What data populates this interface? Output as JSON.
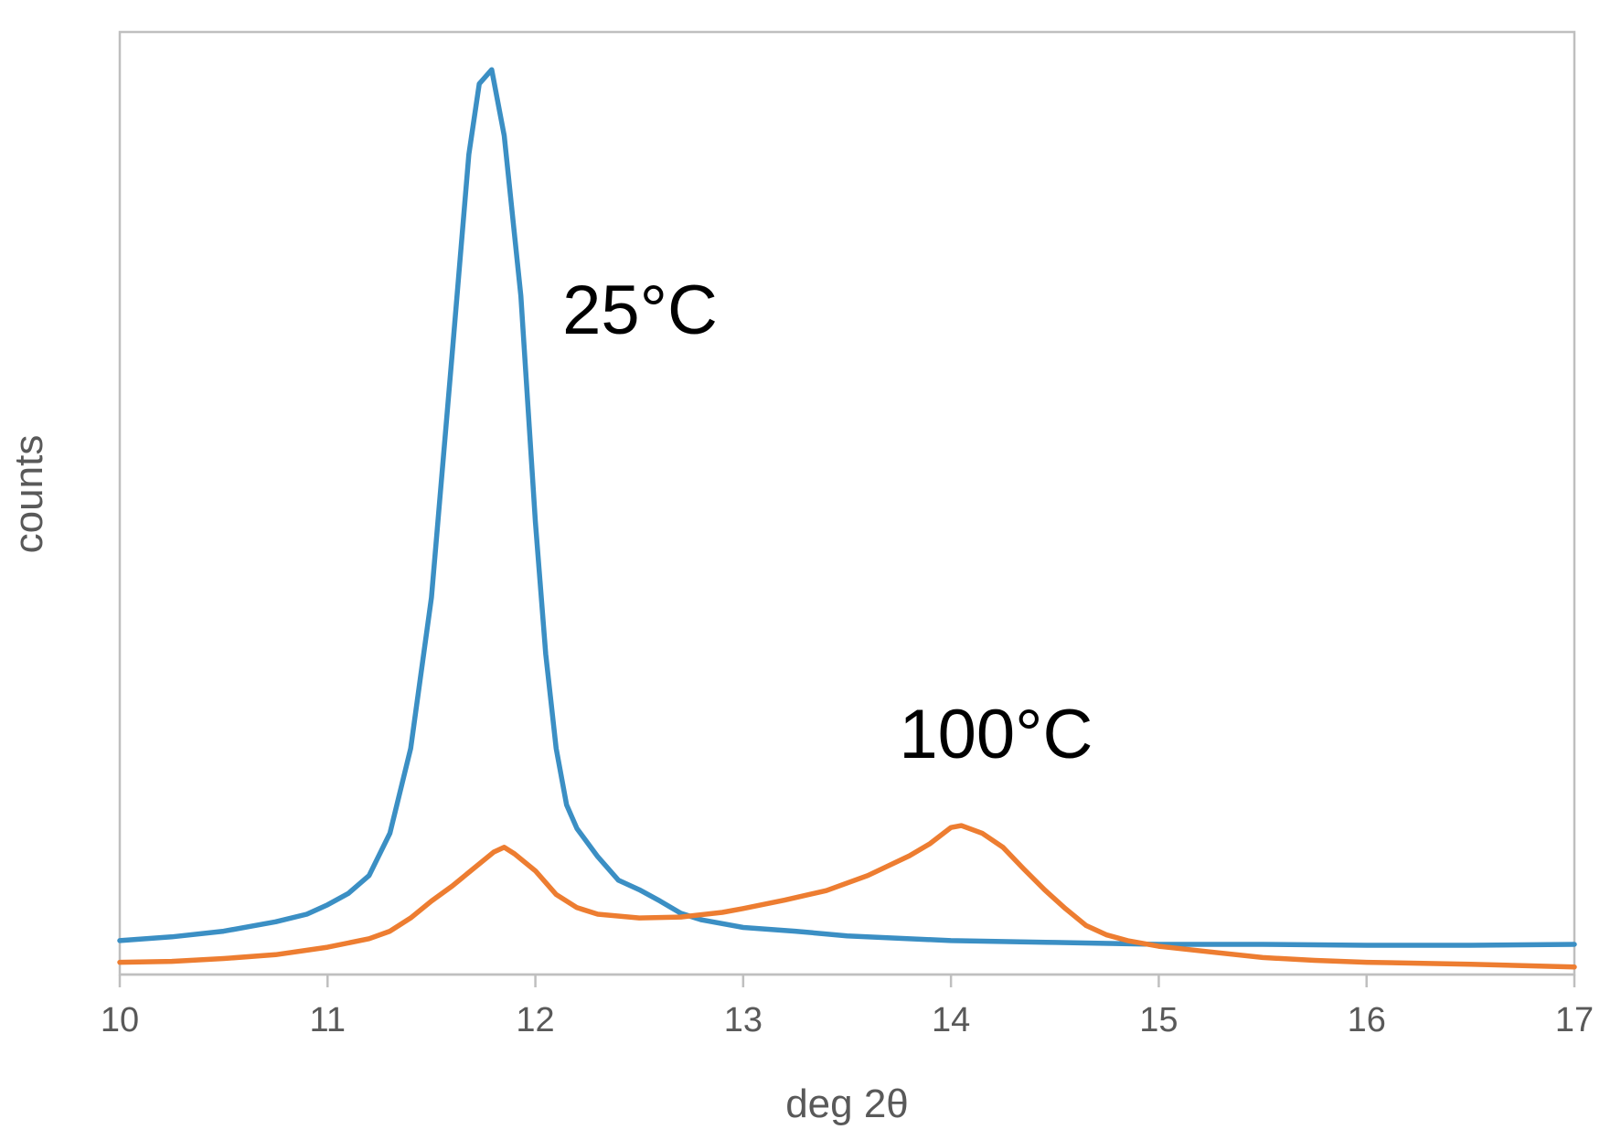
{
  "chart_data": {
    "type": "line",
    "title": "",
    "xlabel": "deg 2θ",
    "ylabel": "counts",
    "xlim": [
      10,
      17
    ],
    "ylim": [
      0,
      100
    ],
    "x_ticks": [
      "10",
      "11",
      "12",
      "13",
      "14",
      "15",
      "16",
      "17"
    ],
    "y_ticks": [],
    "grid": false,
    "legend": "none",
    "annotations": [
      {
        "text": "25°C",
        "x": 12.13,
        "y": 68
      },
      {
        "text": "100°C",
        "x": 13.75,
        "y": 23
      }
    ],
    "series": [
      {
        "color": "#3b8fc4",
        "points": [
          [
            10.0,
            3.6
          ],
          [
            10.25,
            4.0
          ],
          [
            10.5,
            4.6
          ],
          [
            10.75,
            5.6
          ],
          [
            10.9,
            6.4
          ],
          [
            11.0,
            7.4
          ],
          [
            11.1,
            8.6
          ],
          [
            11.2,
            10.5
          ],
          [
            11.3,
            15.0
          ],
          [
            11.4,
            24.0
          ],
          [
            11.5,
            40.0
          ],
          [
            11.6,
            66.0
          ],
          [
            11.68,
            87.0
          ],
          [
            11.73,
            94.5
          ],
          [
            11.79,
            96.0
          ],
          [
            11.85,
            89.0
          ],
          [
            11.93,
            72.0
          ],
          [
            12.0,
            48.0
          ],
          [
            12.05,
            34.0
          ],
          [
            12.1,
            24.0
          ],
          [
            12.15,
            18.0
          ],
          [
            12.2,
            15.5
          ],
          [
            12.3,
            12.5
          ],
          [
            12.4,
            10.0
          ],
          [
            12.5,
            9.0
          ],
          [
            12.6,
            7.8
          ],
          [
            12.7,
            6.5
          ],
          [
            12.8,
            5.8
          ],
          [
            13.0,
            5.0
          ],
          [
            13.25,
            4.6
          ],
          [
            13.5,
            4.1
          ],
          [
            14.0,
            3.6
          ],
          [
            14.5,
            3.4
          ],
          [
            15.0,
            3.2
          ],
          [
            15.5,
            3.2
          ],
          [
            16.0,
            3.1
          ],
          [
            16.5,
            3.1
          ],
          [
            17.0,
            3.2
          ]
        ]
      },
      {
        "color": "#ed7d31",
        "points": [
          [
            10.0,
            1.3
          ],
          [
            10.25,
            1.4
          ],
          [
            10.5,
            1.7
          ],
          [
            10.75,
            2.1
          ],
          [
            11.0,
            2.9
          ],
          [
            11.2,
            3.8
          ],
          [
            11.3,
            4.6
          ],
          [
            11.4,
            6.0
          ],
          [
            11.5,
            7.8
          ],
          [
            11.6,
            9.4
          ],
          [
            11.7,
            11.2
          ],
          [
            11.8,
            13.0
          ],
          [
            11.85,
            13.5
          ],
          [
            11.9,
            12.8
          ],
          [
            12.0,
            11.0
          ],
          [
            12.1,
            8.5
          ],
          [
            12.2,
            7.1
          ],
          [
            12.3,
            6.4
          ],
          [
            12.5,
            6.0
          ],
          [
            12.7,
            6.1
          ],
          [
            12.9,
            6.6
          ],
          [
            13.0,
            7.0
          ],
          [
            13.2,
            7.9
          ],
          [
            13.4,
            8.9
          ],
          [
            13.6,
            10.5
          ],
          [
            13.8,
            12.6
          ],
          [
            13.9,
            13.9
          ],
          [
            14.0,
            15.6
          ],
          [
            14.05,
            15.8
          ],
          [
            14.15,
            15.0
          ],
          [
            14.25,
            13.5
          ],
          [
            14.35,
            11.2
          ],
          [
            14.45,
            9.0
          ],
          [
            14.55,
            7.0
          ],
          [
            14.65,
            5.2
          ],
          [
            14.75,
            4.2
          ],
          [
            14.85,
            3.6
          ],
          [
            15.0,
            3.0
          ],
          [
            15.25,
            2.4
          ],
          [
            15.5,
            1.8
          ],
          [
            15.75,
            1.5
          ],
          [
            16.0,
            1.3
          ],
          [
            16.5,
            1.1
          ],
          [
            17.0,
            0.8
          ]
        ]
      }
    ]
  }
}
